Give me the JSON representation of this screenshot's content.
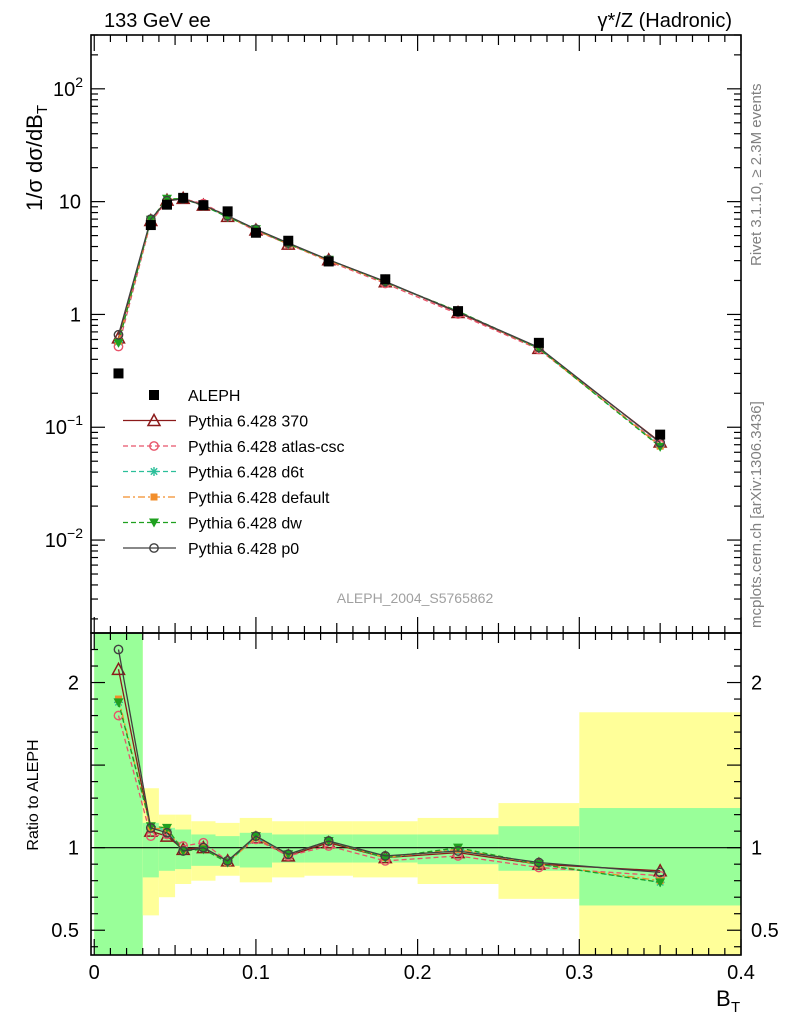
{
  "header": {
    "left": "133 GeV ee",
    "right": "γ*/Z (Hadronic)"
  },
  "side": {
    "top": "Rivet 3.1.10, ≥ 2.3M events",
    "bottom": "mcplots.cern.ch [arXiv:1306.3436]"
  },
  "watermark": "ALEPH_2004_S5765862",
  "chart_data": [
    {
      "type": "line",
      "panel": "main",
      "ylabel": "1/σ dσ/dB_T",
      "yscale": "log",
      "ylim": [
        0.0015,
        300
      ],
      "xlim": [
        -0.002,
        0.4
      ],
      "yticks": [
        {
          "value": 100,
          "label": "10",
          "exp": "2"
        },
        {
          "value": 10,
          "label": "10",
          "exp": ""
        },
        {
          "value": 1,
          "label": "1",
          "exp": ""
        },
        {
          "value": 0.1,
          "label": "10",
          "exp": "−1"
        },
        {
          "value": 0.01,
          "label": "10",
          "exp": "−2"
        }
      ],
      "x": [
        0.015,
        0.035,
        0.045,
        0.055,
        0.0675,
        0.0825,
        0.1,
        0.12,
        0.145,
        0.18,
        0.225,
        0.275,
        0.35
      ],
      "series": [
        {
          "name": "ALEPH",
          "color": "#000000",
          "marker": "square",
          "line": "none",
          "values": [
            0.3,
            6.2,
            9.4,
            10.8,
            9.3,
            8.2,
            5.3,
            4.5,
            2.95,
            2.05,
            1.07,
            0.56,
            0.086
          ]
        },
        {
          "name": "Pythia 6.428 370",
          "color": "#8b1a1a",
          "marker": "triangle-open",
          "line": "solid",
          "values": [
            0.62,
            6.8,
            10.3,
            10.7,
            9.3,
            7.4,
            5.6,
            4.2,
            3.05,
            1.95,
            1.04,
            0.5,
            0.074
          ]
        },
        {
          "name": "Pythia 6.428 atlas-csc",
          "color": "#e8546a",
          "marker": "circle-open",
          "line": "dashed",
          "values": [
            0.52,
            6.6,
            10.1,
            10.6,
            9.6,
            7.4,
            5.5,
            4.2,
            2.95,
            1.88,
            1.01,
            0.49,
            0.07
          ]
        },
        {
          "name": "Pythia 6.428 d6t",
          "color": "#2bbf9a",
          "marker": "star",
          "line": "dashed",
          "values": [
            0.57,
            6.9,
            10.5,
            10.6,
            9.2,
            7.3,
            5.7,
            4.2,
            3.05,
            1.93,
            1.06,
            0.5,
            0.068
          ]
        },
        {
          "name": "Pythia 6.428 default",
          "color": "#f28e2b",
          "marker": "square-filled-small",
          "line": "dashdot",
          "values": [
            0.58,
            6.8,
            10.5,
            10.7,
            9.2,
            7.4,
            5.6,
            4.2,
            3.0,
            1.93,
            1.06,
            0.5,
            0.068
          ]
        },
        {
          "name": "Pythia 6.428 dw",
          "color": "#1fa01f",
          "marker": "triangle-down",
          "line": "dashed",
          "values": [
            0.56,
            6.9,
            10.6,
            10.6,
            9.2,
            7.3,
            5.7,
            4.2,
            3.05,
            1.93,
            1.07,
            0.5,
            0.067
          ]
        },
        {
          "name": "Pythia 6.428 p0",
          "color": "#404040",
          "marker": "circle-open",
          "line": "solid",
          "values": [
            0.66,
            7.0,
            10.2,
            10.6,
            9.3,
            7.5,
            5.7,
            4.3,
            3.05,
            1.96,
            1.05,
            0.51,
            0.073
          ]
        }
      ],
      "legend_position": "lower-left"
    },
    {
      "type": "line",
      "panel": "ratio",
      "ylabel": "Ratio to ALEPH",
      "xlabel": "B_T",
      "ylim": [
        0.35,
        2.3
      ],
      "xlim": [
        -0.002,
        0.4
      ],
      "xticks": [
        {
          "value": 0,
          "label": "0"
        },
        {
          "value": 0.1,
          "label": "0.1"
        },
        {
          "value": 0.2,
          "label": "0.2"
        },
        {
          "value": 0.3,
          "label": "0.3"
        },
        {
          "value": 0.4,
          "label": "0.4"
        }
      ],
      "yticks": [
        {
          "value": 2,
          "label": "2"
        },
        {
          "value": 1,
          "label": "1"
        },
        {
          "value": 0.5,
          "label": "0.5"
        }
      ],
      "bands": {
        "edges": [
          0.0,
          0.03,
          0.04,
          0.05,
          0.06,
          0.075,
          0.09,
          0.11,
          0.13,
          0.16,
          0.2,
          0.25,
          0.3,
          0.4
        ],
        "inner": [
          [
            0.35,
            2.3
          ],
          [
            0.82,
            1.15
          ],
          [
            0.86,
            1.12
          ],
          [
            0.87,
            1.11
          ],
          [
            0.89,
            1.08
          ],
          [
            0.89,
            1.07
          ],
          [
            0.88,
            1.09
          ],
          [
            0.91,
            1.08
          ],
          [
            0.91,
            1.08
          ],
          [
            0.91,
            1.08
          ],
          [
            0.9,
            1.08
          ],
          [
            0.86,
            1.13
          ],
          [
            0.65,
            1.24
          ]
        ],
        "outer": [
          [
            0.35,
            2.3
          ],
          [
            0.59,
            1.36
          ],
          [
            0.7,
            1.2
          ],
          [
            0.78,
            1.2
          ],
          [
            0.8,
            1.16
          ],
          [
            0.83,
            1.15
          ],
          [
            0.79,
            1.18
          ],
          [
            0.82,
            1.16
          ],
          [
            0.83,
            1.16
          ],
          [
            0.82,
            1.16
          ],
          [
            0.78,
            1.18
          ],
          [
            0.69,
            1.27
          ],
          [
            0.35,
            1.82
          ]
        ]
      },
      "band_colors": {
        "inner": "#99ff99",
        "outer": "#ffff99"
      },
      "reference_line": 1,
      "x": [
        0.015,
        0.035,
        0.045,
        0.055,
        0.0675,
        0.0825,
        0.1,
        0.12,
        0.145,
        0.18,
        0.225,
        0.275,
        0.35
      ],
      "series": [
        {
          "name": "Pythia 6.428 370",
          "values": [
            2.08,
            1.1,
            1.07,
            0.99,
            1.0,
            0.92,
            1.06,
            0.95,
            1.03,
            0.94,
            0.97,
            0.9,
            0.86
          ]
        },
        {
          "name": "Pythia 6.428 atlas-csc",
          "values": [
            1.8,
            1.07,
            1.08,
            1.01,
            1.03,
            0.92,
            1.05,
            0.95,
            1.01,
            0.92,
            0.95,
            0.88,
            0.83
          ]
        },
        {
          "name": "Pythia 6.428 d6t",
          "values": [
            1.88,
            1.12,
            1.11,
            0.98,
            1.0,
            0.91,
            1.06,
            0.96,
            1.04,
            0.94,
            0.99,
            0.9,
            0.79
          ]
        },
        {
          "name": "Pythia 6.428 default",
          "values": [
            1.9,
            1.12,
            1.11,
            0.98,
            1.0,
            0.91,
            1.06,
            0.96,
            1.04,
            0.94,
            0.99,
            0.9,
            0.8
          ]
        },
        {
          "name": "Pythia 6.428 dw",
          "values": [
            1.88,
            1.13,
            1.12,
            0.98,
            0.99,
            0.91,
            1.07,
            0.96,
            1.04,
            0.94,
            1.0,
            0.9,
            0.79
          ]
        },
        {
          "name": "Pythia 6.428 p0",
          "values": [
            2.2,
            1.12,
            1.09,
            0.98,
            1.0,
            0.92,
            1.07,
            0.96,
            1.04,
            0.95,
            0.98,
            0.91,
            0.85
          ]
        }
      ]
    }
  ]
}
